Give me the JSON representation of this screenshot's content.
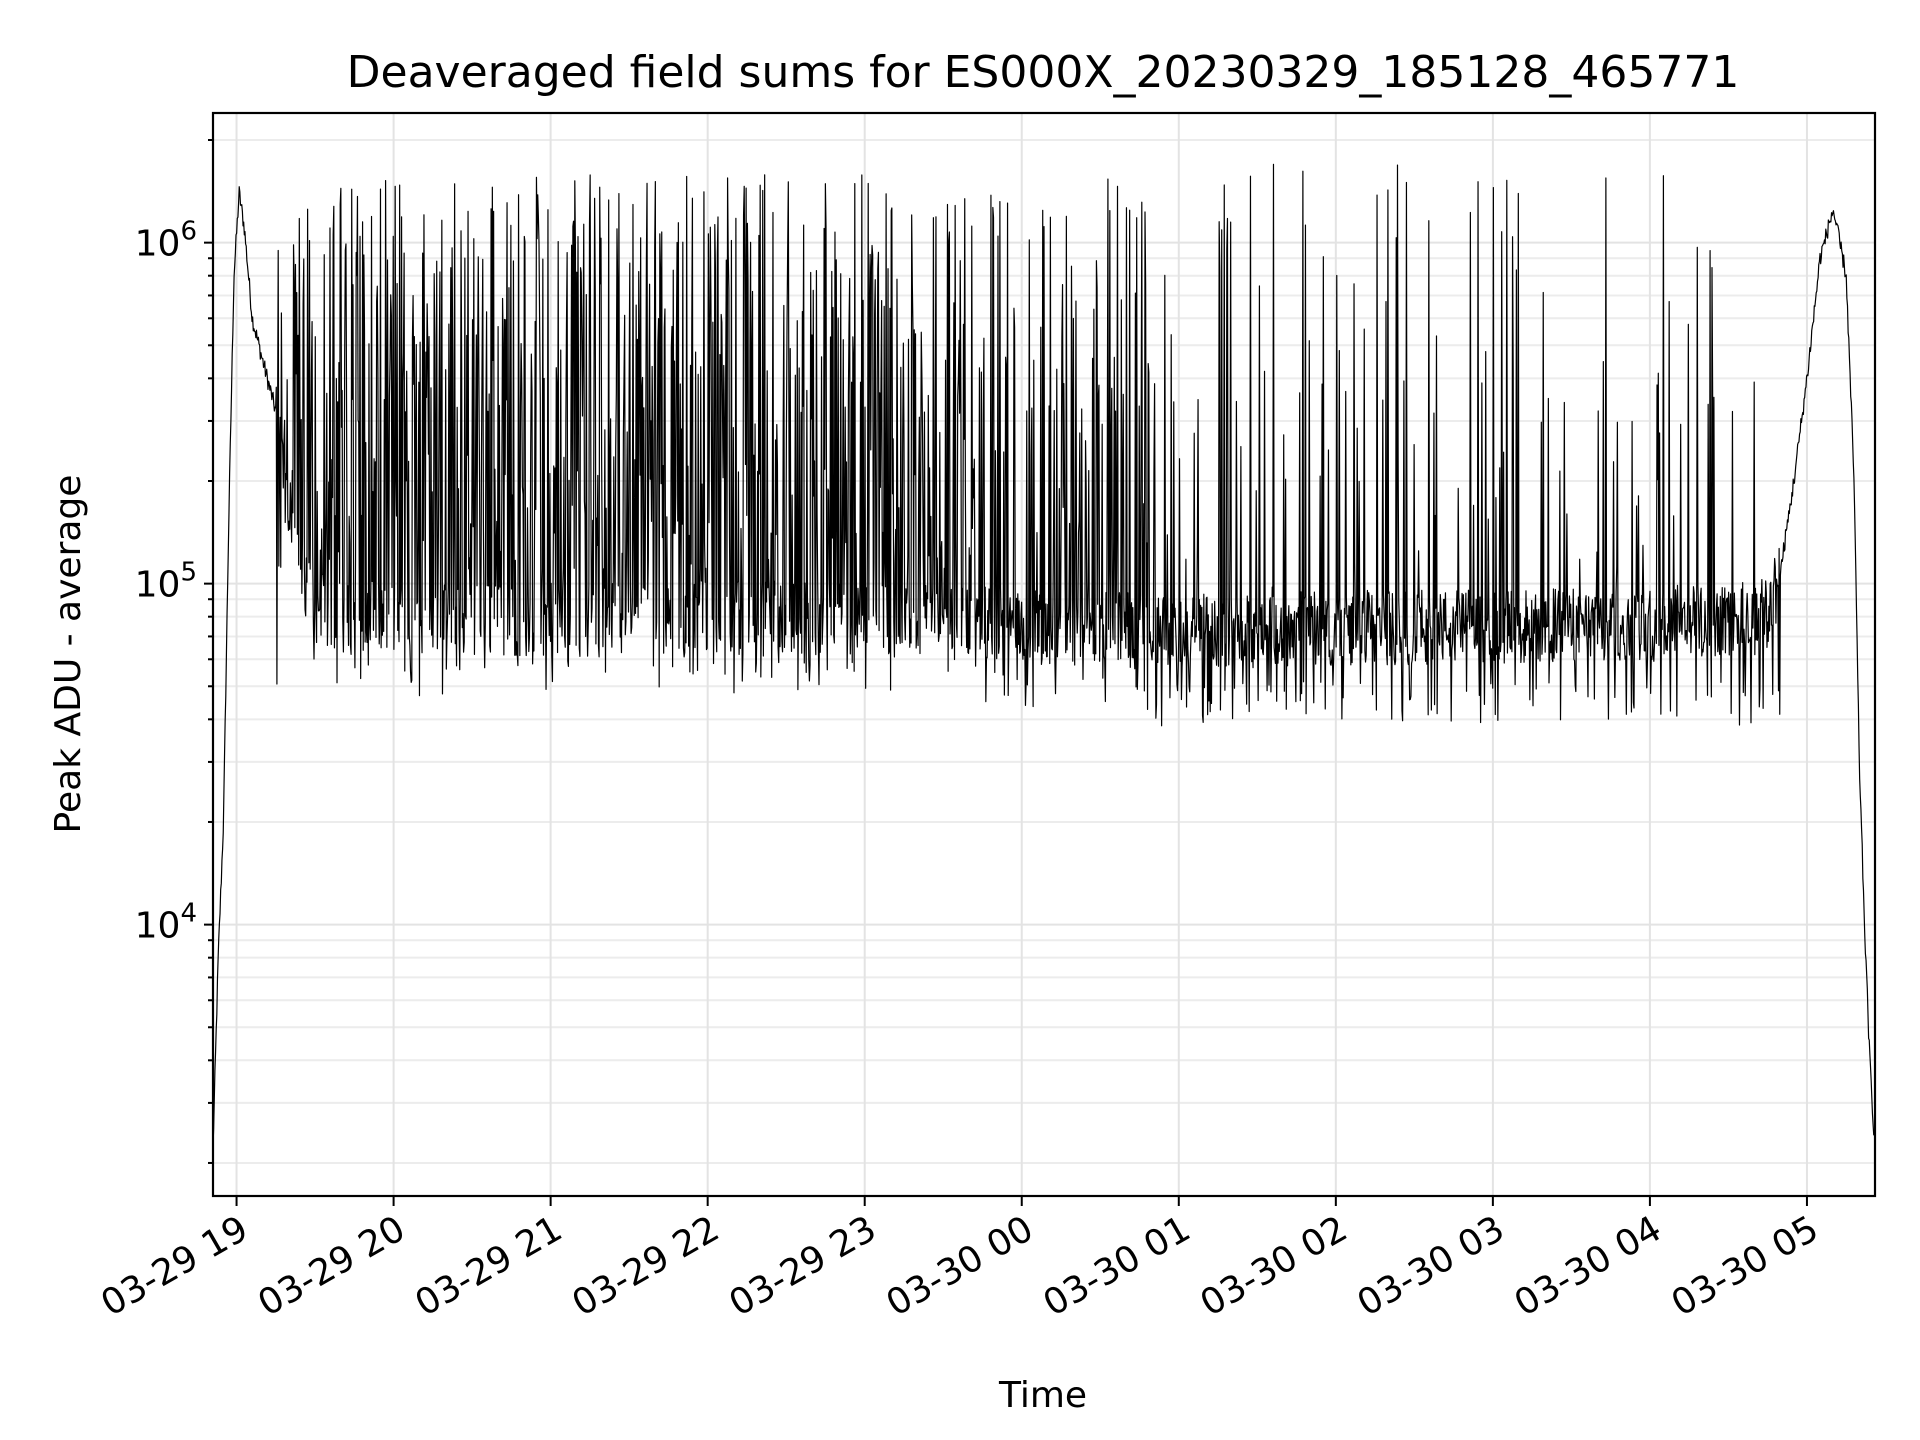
{
  "chart_data": {
    "type": "line",
    "title": "Deaveraged field sums for ES000X_20230329_185128_465771",
    "xlabel": "Time",
    "ylabel": "Peak ADU - average",
    "yscale": "log",
    "ylim": [
      1600,
      2400000
    ],
    "xlim": [
      "2023-03-29 18:51",
      "2023-03-30 05:26"
    ],
    "grid": true,
    "line_color": "#000000",
    "x_ticks": [
      "03-29 19",
      "03-29 20",
      "03-29 21",
      "03-29 22",
      "03-29 23",
      "03-30 00",
      "03-30 01",
      "03-30 02",
      "03-30 03",
      "03-30 04",
      "03-30 05"
    ],
    "y_ticks": [
      {
        "value": 10000,
        "base": "10",
        "exp": "4"
      },
      {
        "value": 100000,
        "base": "10",
        "exp": "5"
      },
      {
        "value": 1000000,
        "base": "10",
        "exp": "6"
      }
    ],
    "series": [
      {
        "points": [
          [
            "2023-03-29 18:51",
            2200
          ],
          [
            "2023-03-29 18:53",
            8000
          ],
          [
            "2023-03-29 18:55",
            20000
          ],
          [
            "2023-03-29 18:57",
            150000
          ],
          [
            "2023-03-29 18:59",
            800000
          ],
          [
            "2023-03-29 19:01",
            1400000
          ],
          [
            "2023-03-29 19:03",
            1100000
          ],
          [
            "2023-03-29 19:06",
            600000
          ],
          [
            "2023-03-29 19:10",
            450000
          ],
          [
            "2023-03-29 19:15",
            320000
          ],
          [
            "2023-03-29 19:20",
            180000
          ],
          [
            "2023-03-29 19:25",
            110000
          ],
          [
            "2023-03-29 19:30",
            85000
          ],
          [
            "2023-03-29 19:40",
            80000
          ],
          [
            "2023-03-29 20:00",
            78000
          ],
          [
            "2023-03-29 21:00",
            78000
          ],
          [
            "2023-03-29 22:00",
            80000
          ],
          [
            "2023-03-29 23:00",
            80000
          ],
          [
            "2023-03-30 00:00",
            75000
          ],
          [
            "2023-03-30 01:00",
            72000
          ],
          [
            "2023-03-30 02:00",
            74000
          ],
          [
            "2023-03-30 03:00",
            75000
          ],
          [
            "2023-03-30 04:00",
            76000
          ],
          [
            "2023-03-30 04:45",
            80000
          ],
          [
            "2023-03-30 04:50",
            110000
          ],
          [
            "2023-03-30 04:55",
            200000
          ],
          [
            "2023-03-30 05:00",
            400000
          ],
          [
            "2023-03-30 05:05",
            900000
          ],
          [
            "2023-03-30 05:10",
            1250000
          ],
          [
            "2023-03-30 05:15",
            800000
          ],
          [
            "2023-03-30 05:18",
            200000
          ],
          [
            "2023-03-30 05:20",
            30000
          ],
          [
            "2023-03-30 05:22",
            10000
          ],
          [
            "2023-03-30 05:24",
            4000
          ],
          [
            "2023-03-30 05:26",
            2200
          ]
        ],
        "spike_bands": [
          {
            "from": "2023-03-29 19:15",
            "to": "2023-03-29 23:40",
            "floor": 55000,
            "peak": 1600000,
            "density": "high"
          },
          {
            "from": "2023-03-29 23:40",
            "to": "2023-03-30 00:50",
            "floor": 50000,
            "peak": 1700000,
            "density": "medium"
          },
          {
            "from": "2023-03-30 00:50",
            "to": "2023-03-30 04:50",
            "floor": 45000,
            "peak": 1700000,
            "density": "low"
          }
        ]
      }
    ]
  }
}
